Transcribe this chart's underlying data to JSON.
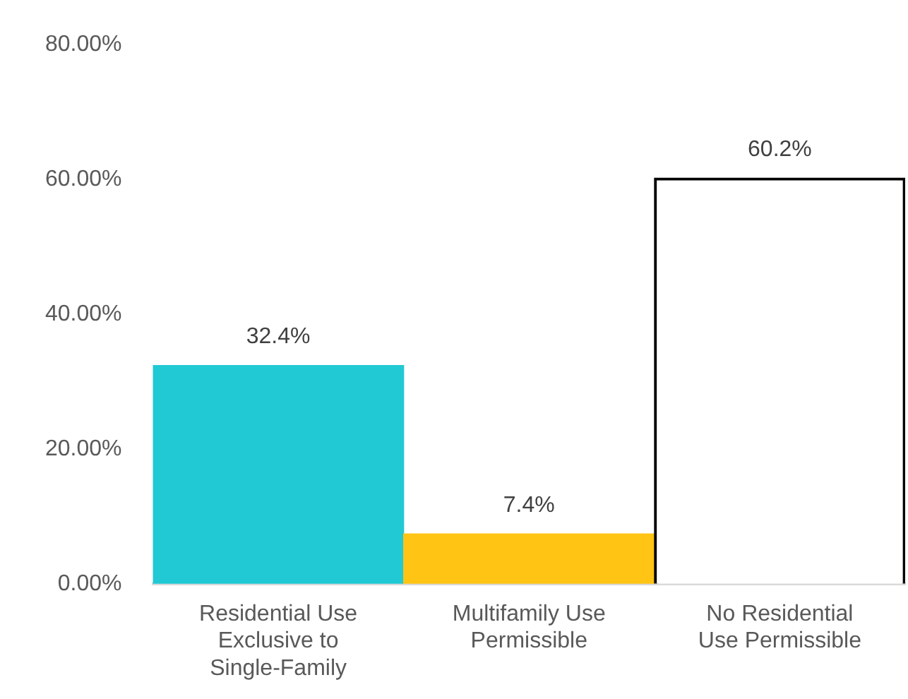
{
  "chart_data": {
    "type": "bar",
    "categories": [
      "Residential Use Exclusive to Single-Family",
      "Multifamily Use Permissible",
      "No Residential Use Permissible"
    ],
    "values": [
      32.4,
      7.4,
      60.2
    ],
    "colors": [
      "#20c9d4",
      "#ffc414",
      "#ffffff"
    ],
    "value_labels": [
      "32.4%",
      "7.4%",
      "60.2%"
    ],
    "ylim": [
      0,
      80
    ],
    "yticks": [
      {
        "value": 0,
        "label": "0.00%"
      },
      {
        "value": 20,
        "label": "20.00%"
      },
      {
        "value": 40,
        "label": "40.00%"
      },
      {
        "value": 60,
        "label": "60.00%"
      },
      {
        "value": 80,
        "label": "80.00%"
      }
    ],
    "grid": false,
    "legend": false
  }
}
